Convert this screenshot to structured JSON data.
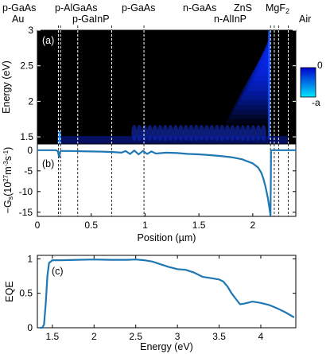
{
  "chart_data": [
    {
      "id": "a",
      "type": "heatmap",
      "panel_label": "(a)",
      "ylabel": "Energy (eV)",
      "xlim": [
        0,
        2.4
      ],
      "ylim": [
        1.4,
        3.0
      ],
      "yticks": [
        "1.5",
        "2",
        "2.5",
        "3"
      ],
      "ytick_values": [
        1.5,
        2,
        2.5,
        3
      ],
      "colorbar": {
        "max_label": "0",
        "min_label": "-a",
        "colors": [
          "#00e5ff",
          "#0000cc",
          "#000000"
        ]
      },
      "layers": [
        {
          "name": "p-GaAs",
          "end": 0.195
        },
        {
          "name": "Au",
          "end": 0.215
        },
        {
          "name": "p-AlGaAs",
          "end": 0.375
        },
        {
          "name": "p-GaInP",
          "end": 0.69
        },
        {
          "name": "p-GaAs",
          "end": 0.99
        },
        {
          "name": "n-GaAs",
          "end": 2.165
        },
        {
          "name": "n-AlInP",
          "end": 2.2
        },
        {
          "name": "ZnS",
          "end": 2.24
        },
        {
          "name": "MgF",
          "sub": "2",
          "end": 2.33
        },
        {
          "name": "Air",
          "end": 2.4
        }
      ]
    },
    {
      "id": "b",
      "type": "line",
      "panel_label": "(b)",
      "ylabel": "−G",
      "ylabel_sub": "s",
      "ylabel_units": "(10",
      "ylabel_exp1": "27",
      "ylabel_mid": "m",
      "ylabel_exp2": "-3",
      "ylabel_mid2": "s",
      "ylabel_exp3": "-1",
      "ylabel_end": ")",
      "xlabel": "Position (µm)",
      "xlim": [
        0,
        2.4
      ],
      "ylim": [
        -16,
        1.5
      ],
      "xticks": [
        "0",
        "0.5",
        "1",
        "1.5",
        "2"
      ],
      "xtick_values": [
        0,
        0.5,
        1,
        1.5,
        2
      ],
      "yticks": [
        "0",
        "-5",
        "-10",
        "-15"
      ],
      "ytick_values": [
        0,
        -5,
        -10,
        -15
      ],
      "series": [
        {
          "color": "#1f77b4",
          "x": [
            0,
            0.17,
            0.19,
            0.2,
            0.205,
            0.21,
            0.22,
            0.3,
            0.4,
            0.5,
            0.6,
            0.7,
            0.78,
            0.82,
            0.86,
            0.9,
            0.94,
            0.98,
            1.02,
            1.06,
            1.1,
            1.2,
            1.3,
            1.4,
            1.5,
            1.6,
            1.7,
            1.8,
            1.9,
            2.0,
            2.05,
            2.08,
            2.1,
            2.12,
            2.14,
            2.155,
            2.165,
            2.17,
            2.2,
            2.3,
            2.4
          ],
          "y": [
            0,
            0,
            -0.2,
            -1.5,
            -1.6,
            -0.4,
            -0.2,
            -0.2,
            -0.25,
            -0.3,
            -0.35,
            -0.45,
            -0.6,
            -0.2,
            -0.9,
            -0.1,
            -1.0,
            -0.2,
            -0.9,
            -0.3,
            -0.8,
            -0.6,
            -0.7,
            -0.9,
            -1.0,
            -1.2,
            -1.4,
            -1.7,
            -2.2,
            -3.2,
            -4.2,
            -5.5,
            -7.0,
            -9.0,
            -11.5,
            -14.0,
            -15.8,
            0,
            0,
            0,
            0
          ]
        }
      ]
    },
    {
      "id": "c",
      "type": "line",
      "panel_label": "(c)",
      "ylabel": "EQE",
      "xlabel": "Energy (eV)",
      "xlim": [
        1.32,
        4.42
      ],
      "ylim": [
        0,
        1.05
      ],
      "xticks": [
        "1.5",
        "2",
        "2.5",
        "3",
        "3.5",
        "4"
      ],
      "xtick_values": [
        1.5,
        2,
        2.5,
        3,
        3.5,
        4
      ],
      "yticks": [
        "0",
        "0.5",
        "1"
      ],
      "ytick_values": [
        0,
        0.5,
        1
      ],
      "series": [
        {
          "color": "#1f77b4",
          "x": [
            1.35,
            1.38,
            1.4,
            1.42,
            1.44,
            1.46,
            1.5,
            1.6,
            1.8,
            2.0,
            2.2,
            2.4,
            2.5,
            2.6,
            2.7,
            2.8,
            2.9,
            3.0,
            3.1,
            3.2,
            3.3,
            3.4,
            3.5,
            3.55,
            3.6,
            3.65,
            3.7,
            3.75,
            3.8,
            3.9,
            4.0,
            4.1,
            4.2,
            4.3,
            4.4
          ],
          "y": [
            0.0,
            0.0,
            0.05,
            0.35,
            0.75,
            0.94,
            0.98,
            0.98,
            0.985,
            0.99,
            0.985,
            0.985,
            0.99,
            0.98,
            0.96,
            0.92,
            0.88,
            0.85,
            0.84,
            0.8,
            0.74,
            0.72,
            0.7,
            0.67,
            0.6,
            0.5,
            0.42,
            0.34,
            0.35,
            0.38,
            0.36,
            0.33,
            0.28,
            0.22,
            0.15
          ]
        }
      ]
    }
  ]
}
